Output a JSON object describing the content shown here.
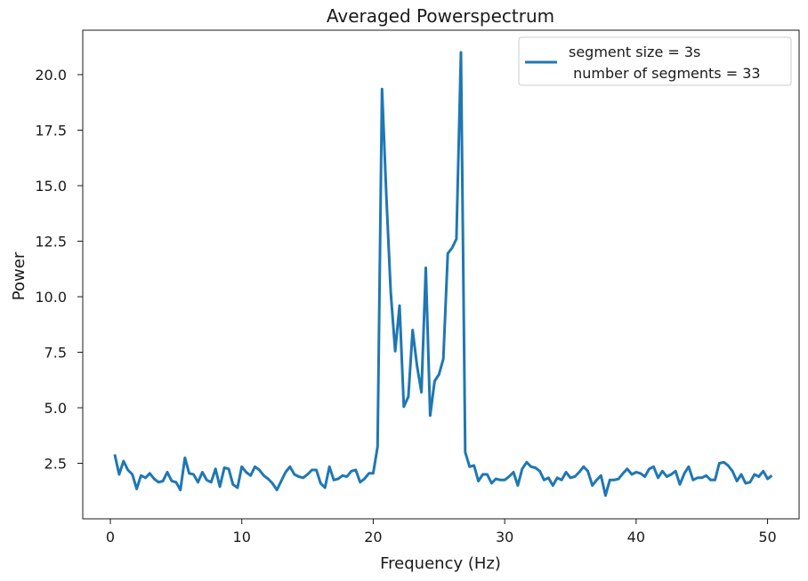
{
  "chart_data": {
    "type": "line",
    "title": "Averaged Powerspectrum",
    "xlabel": "Frequency (Hz)",
    "ylabel": "Power",
    "xlim": [
      -2.1,
      52.4
    ],
    "ylim": [
      0.0,
      22.0
    ],
    "xticks": [
      0,
      10,
      20,
      30,
      40,
      50
    ],
    "xtick_labels": [
      "0",
      "10",
      "20",
      "30",
      "40",
      "50"
    ],
    "yticks": [
      2.5,
      5.0,
      7.5,
      10.0,
      12.5,
      15.0,
      17.5,
      20.0
    ],
    "ytick_labels": [
      "2.5",
      "5.0",
      "7.5",
      "10.0",
      "12.5",
      "15.0",
      "17.5",
      "20.0"
    ],
    "grid": false,
    "legend_position": "top-right",
    "series": [
      {
        "name": "segment size = 3s\n number of segments = 33",
        "legend_lines": [
          "segment size = 3s",
          " number of segments = 33"
        ],
        "color": "#1f77b4",
        "x": [
          0.33,
          0.67,
          1.0,
          1.33,
          1.67,
          2.0,
          2.33,
          2.67,
          3.0,
          3.33,
          3.67,
          4.0,
          4.33,
          4.67,
          5.0,
          5.33,
          5.67,
          6.0,
          6.33,
          6.67,
          7.0,
          7.33,
          7.67,
          8.0,
          8.33,
          8.67,
          9.0,
          9.33,
          9.67,
          10.0,
          10.33,
          10.67,
          11.0,
          11.33,
          11.67,
          12.0,
          12.33,
          12.67,
          13.0,
          13.33,
          13.67,
          14.0,
          14.33,
          14.67,
          15.0,
          15.33,
          15.67,
          16.0,
          16.33,
          16.67,
          17.0,
          17.33,
          17.67,
          18.0,
          18.33,
          18.67,
          19.0,
          19.33,
          19.67,
          20.0,
          20.33,
          20.67,
          21.0,
          21.33,
          21.67,
          22.0,
          22.33,
          22.67,
          23.0,
          23.33,
          23.67,
          24.0,
          24.33,
          24.67,
          25.0,
          25.33,
          25.67,
          26.0,
          26.33,
          26.67,
          27.0,
          27.33,
          27.67,
          28.0,
          28.33,
          28.67,
          29.0,
          29.33,
          29.67,
          30.0,
          30.33,
          30.67,
          31.0,
          31.33,
          31.67,
          32.0,
          32.33,
          32.67,
          33.0,
          33.33,
          33.67,
          34.0,
          34.33,
          34.67,
          35.0,
          35.33,
          35.67,
          36.0,
          36.33,
          36.67,
          37.0,
          37.33,
          37.67,
          38.0,
          38.33,
          38.67,
          39.0,
          39.33,
          39.67,
          40.0,
          40.33,
          40.67,
          41.0,
          41.33,
          41.67,
          42.0,
          42.33,
          42.67,
          43.0,
          43.33,
          43.67,
          44.0,
          44.33,
          44.67,
          45.0,
          45.33,
          45.67,
          46.0,
          46.33,
          46.67,
          47.0,
          47.33,
          47.67,
          48.0,
          48.33,
          48.67,
          49.0,
          49.33,
          49.67,
          50.0,
          50.33
        ],
        "y": [
          2.9,
          2.0,
          2.6,
          2.2,
          2.0,
          1.35,
          1.95,
          1.85,
          2.05,
          1.8,
          1.65,
          1.7,
          2.1,
          1.7,
          1.65,
          1.3,
          2.75,
          2.05,
          2.0,
          1.65,
          2.1,
          1.75,
          1.65,
          2.25,
          1.45,
          2.3,
          2.25,
          1.55,
          1.4,
          2.35,
          2.1,
          1.95,
          2.35,
          2.2,
          1.95,
          1.8,
          1.6,
          1.3,
          1.7,
          2.1,
          2.35,
          2.0,
          1.9,
          1.85,
          2.0,
          2.2,
          2.2,
          1.6,
          1.4,
          2.35,
          1.75,
          1.8,
          1.95,
          1.9,
          2.15,
          2.2,
          1.65,
          1.8,
          2.05,
          2.05,
          3.25,
          19.35,
          14.5,
          10.2,
          7.55,
          9.6,
          5.05,
          5.5,
          8.5,
          6.9,
          5.7,
          11.3,
          4.65,
          6.2,
          6.5,
          7.2,
          11.95,
          12.2,
          12.6,
          21.0,
          3.0,
          2.35,
          2.4,
          1.7,
          2.0,
          2.0,
          1.6,
          1.8,
          1.75,
          1.75,
          1.9,
          2.1,
          1.5,
          2.25,
          2.55,
          2.35,
          2.3,
          2.15,
          1.75,
          1.85,
          1.5,
          1.85,
          1.75,
          2.1,
          1.85,
          1.9,
          2.1,
          2.35,
          2.15,
          1.5,
          1.75,
          1.95,
          1.05,
          1.75,
          1.75,
          1.8,
          2.05,
          2.25,
          2.0,
          2.1,
          2.05,
          1.9,
          2.25,
          2.35,
          1.85,
          2.15,
          1.9,
          2.0,
          2.15,
          1.55,
          2.05,
          2.35,
          1.75,
          1.85,
          1.85,
          1.95,
          1.75,
          1.75,
          2.5,
          2.55,
          2.4,
          2.15,
          1.7,
          2.0,
          1.6,
          1.65,
          2.0,
          1.9,
          2.15,
          1.8,
          1.95
        ]
      }
    ]
  }
}
